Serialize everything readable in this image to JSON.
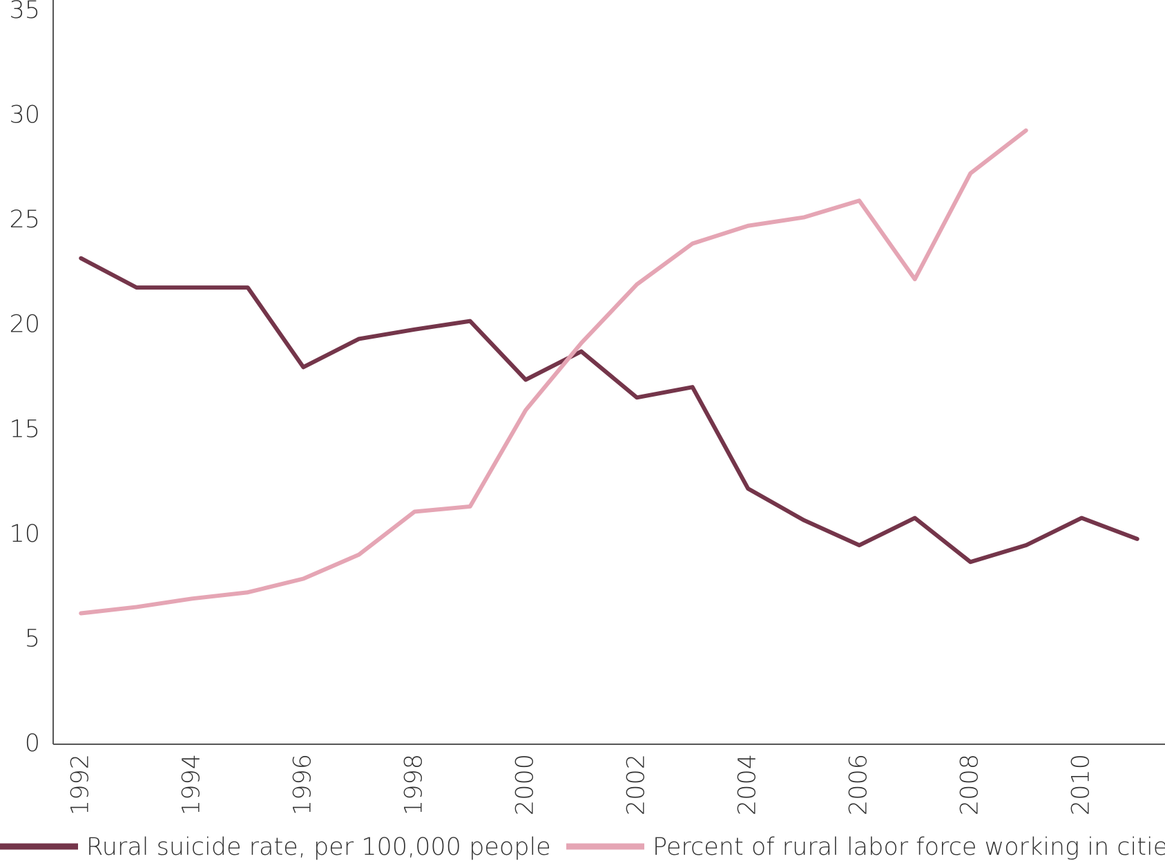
{
  "chart_data": {
    "type": "line",
    "x": [
      1992,
      1993,
      1994,
      1995,
      1996,
      1997,
      1998,
      1999,
      2000,
      2001,
      2002,
      2003,
      2004,
      2005,
      2006,
      2007,
      2008,
      2009,
      2010,
      2011
    ],
    "series": [
      {
        "name": "Rural suicide rate, per 100,000 people",
        "color": "#74354a",
        "values": [
          23.2,
          21.8,
          21.8,
          21.8,
          18.0,
          19.35,
          19.8,
          20.2,
          17.4,
          18.75,
          16.55,
          17.05,
          12.2,
          10.7,
          9.5,
          10.8,
          8.7,
          9.5,
          10.8,
          9.8
        ]
      },
      {
        "name": "Percent of rural labor force working in cities",
        "color": "#e5a5b4",
        "values": [
          6.25,
          6.55,
          6.95,
          7.25,
          7.9,
          9.05,
          11.1,
          11.35,
          15.95,
          19.15,
          21.95,
          23.9,
          24.75,
          25.15,
          25.95,
          22.2,
          27.25,
          29.3,
          null,
          null
        ]
      }
    ],
    "xlim": [
      1991.5,
      2011.5
    ],
    "xticks": [
      1992,
      1994,
      1996,
      1998,
      2000,
      2002,
      2004,
      2006,
      2008,
      2010
    ],
    "ylim": [
      0,
      35
    ],
    "yticks": [
      0,
      5,
      10,
      15,
      20,
      25,
      30,
      35
    ],
    "grid": false,
    "legend": "bottom"
  }
}
